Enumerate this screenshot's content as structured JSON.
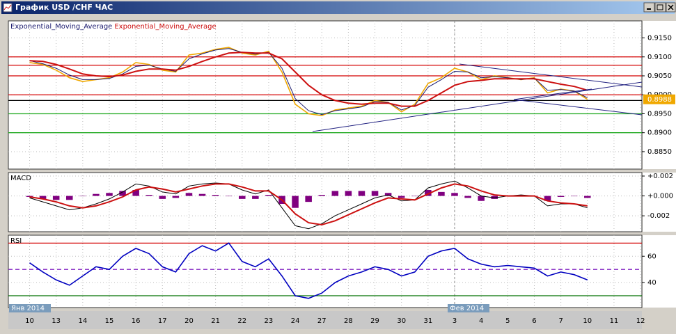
{
  "window": {
    "title": "График USD /CHF  ЧАС"
  },
  "xticks": [
    {
      "value": 0,
      "label": "10"
    },
    {
      "value": 1,
      "label": "13"
    },
    {
      "value": 2,
      "label": "14"
    },
    {
      "value": 3,
      "label": "15"
    },
    {
      "value": 4,
      "label": "16"
    },
    {
      "value": 5,
      "label": "17"
    },
    {
      "value": 6,
      "label": "20"
    },
    {
      "value": 7,
      "label": "21"
    },
    {
      "value": 8,
      "label": "22"
    },
    {
      "value": 9,
      "label": "23"
    },
    {
      "value": 10,
      "label": "24"
    },
    {
      "value": 11,
      "label": "27"
    },
    {
      "value": 12,
      "label": "28"
    },
    {
      "value": 13,
      "label": "29"
    },
    {
      "value": 14,
      "label": "30"
    },
    {
      "value": 15,
      "label": "31"
    },
    {
      "value": 16,
      "label": "3"
    },
    {
      "value": 17,
      "label": "4"
    },
    {
      "value": 18,
      "label": "5"
    },
    {
      "value": 19,
      "label": "6"
    },
    {
      "value": 20,
      "label": "7"
    },
    {
      "value": 21,
      "label": "10"
    },
    {
      "value": 22,
      "label": "11"
    },
    {
      "value": 23,
      "label": "12"
    }
  ],
  "month_labels": [
    "Янв 2014",
    null,
    null,
    null,
    null,
    null,
    null,
    null,
    null,
    null,
    null,
    null,
    null,
    null,
    null,
    null,
    "Фев 2014",
    null,
    null,
    null,
    null,
    null,
    null,
    null
  ],
  "xlim": [
    -0.8,
    23.05
  ],
  "x": [
    0,
    0.5,
    1,
    1.5,
    2,
    2.5,
    3,
    3.5,
    4,
    4.5,
    5,
    5.5,
    6,
    6.5,
    7,
    7.5,
    8,
    8.5,
    9,
    9.5,
    10,
    10.5,
    11,
    11.5,
    12,
    12.5,
    13,
    13.5,
    14,
    14.5,
    15,
    15.5,
    16,
    16.5,
    17,
    17.5,
    18,
    18.5,
    19,
    19.5,
    20,
    20.5,
    21
  ],
  "chart_data": [
    {
      "type": "line",
      "ylim": [
        0.8804,
        0.9195
      ],
      "yticks": [
        {
          "value": 0.915,
          "label": "0.9150"
        },
        {
          "value": 0.91,
          "label": "0.9100"
        },
        {
          "value": 0.905,
          "label": "0.9050"
        },
        {
          "value": 0.9,
          "label": "0.9000"
        },
        {
          "value": 0.895,
          "label": "0.8950"
        },
        {
          "value": 0.89,
          "label": "0.8900"
        },
        {
          "value": 0.885,
          "label": "0.8850"
        }
      ],
      "levels": [
        {
          "value": 0.91,
          "color": "#d40000"
        },
        {
          "value": 0.9078,
          "color": "#d40000"
        },
        {
          "value": 0.905,
          "color": "#d40000"
        },
        {
          "value": 0.9,
          "color": "#d40000"
        },
        {
          "value": 0.8985,
          "color": "#000000"
        },
        {
          "value": 0.895,
          "color": "#22aa22"
        },
        {
          "value": 0.89,
          "color": "#22aa22"
        }
      ],
      "current": {
        "value": 0.8988,
        "label": "0.8988"
      },
      "series": [
        {
          "color": "#f0a800",
          "width": 1.6,
          "values": [
            0.9085,
            0.908,
            0.9065,
            0.9045,
            0.9035,
            0.904,
            0.9045,
            0.906,
            0.9085,
            0.908,
            0.9065,
            0.906,
            0.9105,
            0.911,
            0.912,
            0.9125,
            0.911,
            0.9105,
            0.9115,
            0.906,
            0.8975,
            0.895,
            0.8945,
            0.896,
            0.8965,
            0.897,
            0.8985,
            0.898,
            0.8955,
            0.8975,
            0.903,
            0.9045,
            0.907,
            0.906,
            0.904,
            0.905,
            0.9045,
            0.904,
            0.9045,
            0.9005,
            0.9015,
            0.901,
            0.8988
          ]
        },
        {
          "name": "Exponential_Moving_Average",
          "color": "#1a1a6e",
          "width": 1,
          "values": [
            0.909,
            0.9082,
            0.907,
            0.9052,
            0.904,
            0.904,
            0.9043,
            0.9055,
            0.9075,
            0.9078,
            0.9068,
            0.9062,
            0.9095,
            0.9108,
            0.9118,
            0.9122,
            0.9112,
            0.9107,
            0.9112,
            0.907,
            0.899,
            0.8958,
            0.8948,
            0.8958,
            0.8963,
            0.8968,
            0.8982,
            0.898,
            0.896,
            0.8972,
            0.902,
            0.904,
            0.9062,
            0.906,
            0.9045,
            0.9048,
            0.9045,
            0.904,
            0.9044,
            0.9012,
            0.9014,
            0.901,
            0.8992
          ]
        },
        {
          "name": "Exponential_Moving_Average",
          "color": "#cc1010",
          "width": 2,
          "values": [
            0.909,
            0.9088,
            0.908,
            0.9068,
            0.9055,
            0.905,
            0.9048,
            0.9052,
            0.9062,
            0.9068,
            0.9068,
            0.9065,
            0.9075,
            0.9088,
            0.91,
            0.911,
            0.9112,
            0.911,
            0.911,
            0.9095,
            0.906,
            0.9025,
            0.9,
            0.8985,
            0.8978,
            0.8975,
            0.8978,
            0.8978,
            0.897,
            0.897,
            0.8985,
            0.9005,
            0.9025,
            0.9035,
            0.9038,
            0.9042,
            0.9042,
            0.9042,
            0.9042,
            0.9035,
            0.9028,
            0.9022,
            0.9012
          ]
        }
      ]
    },
    {
      "type": "line",
      "title": "MACD",
      "ylim": [
        -0.0036,
        0.00235
      ],
      "yticks": [
        {
          "value": 0.002,
          "label": "+0.002"
        },
        {
          "value": 0,
          "label": "+0.000"
        },
        {
          "value": -0.002,
          "label": "-0.002"
        }
      ],
      "histogram": {
        "color": "#800080",
        "values": [
          -0.0001,
          -0.0003,
          -0.0004,
          -0.0004,
          0,
          0.0002,
          0.0003,
          0.0005,
          0.0006,
          0.0001,
          -0.0003,
          -0.0002,
          0.0003,
          0.0002,
          0.0001,
          0,
          -0.0003,
          -0.0003,
          0.0001,
          -0.0008,
          -0.0012,
          -0.0006,
          0.0001,
          0.0005,
          0.0005,
          0.0005,
          0.0005,
          0.0003,
          -0.0002,
          0,
          0.0006,
          0.0004,
          0.0003,
          -0.0002,
          -0.0005,
          -0.0003,
          0,
          0.0001,
          0,
          -0.0005,
          -0.0001,
          0,
          -0.0002
        ]
      },
      "series": [
        {
          "color": "#000000",
          "width": 1,
          "values": [
            -0.0002,
            -0.0006,
            -0.001,
            -0.0014,
            -0.0012,
            -0.0008,
            -0.0003,
            0.0004,
            0.0012,
            0.001,
            0.0004,
            0.0002,
            0.001,
            0.0012,
            0.0013,
            0.0012,
            0.0006,
            0.0002,
            0.0006,
            -0.0012,
            -0.003,
            -0.0033,
            -0.0028,
            -0.002,
            -0.0014,
            -0.0008,
            -0.0002,
            0.0001,
            -0.0005,
            -0.0004,
            0.0008,
            0.0012,
            0.0015,
            0.0008,
            0,
            -0.0002,
            0,
            0.0001,
            0,
            -0.001,
            -0.0008,
            -0.0008,
            -0.0012
          ]
        },
        {
          "color": "#cc1010",
          "width": 2,
          "values": [
            -0.0001,
            -0.0003,
            -0.0006,
            -0.001,
            -0.0012,
            -0.001,
            -0.0006,
            -0.0001,
            0.0006,
            0.0009,
            0.0007,
            0.0004,
            0.0007,
            0.001,
            0.0012,
            0.0012,
            0.0009,
            0.0005,
            0.0005,
            -0.0004,
            -0.0018,
            -0.0027,
            -0.0029,
            -0.0025,
            -0.0019,
            -0.0013,
            -0.0007,
            -0.0002,
            -0.0003,
            -0.0004,
            0.0002,
            0.0008,
            0.0012,
            0.001,
            0.0005,
            0.0001,
            0,
            0,
            0,
            -0.0005,
            -0.0007,
            -0.0008,
            -0.001
          ]
        }
      ]
    },
    {
      "type": "line",
      "title": "RSI",
      "ylim": [
        21,
        76
      ],
      "yticks": [
        60,
        40
      ],
      "levels": [
        {
          "value": 70,
          "color": "#d40000"
        },
        {
          "value": 50,
          "color": "#8020c0",
          "dashed": true
        },
        {
          "value": 30,
          "color": "#007000"
        }
      ],
      "series": [
        {
          "color": "#0000c0",
          "width": 1.6,
          "values": [
            55,
            48,
            42,
            38,
            45,
            52,
            50,
            60,
            66,
            62,
            52,
            48,
            62,
            68,
            64,
            70,
            56,
            52,
            58,
            45,
            30,
            28,
            32,
            40,
            45,
            48,
            52,
            50,
            45,
            48,
            60,
            64,
            66,
            58,
            54,
            52,
            53,
            52,
            51,
            45,
            48,
            46,
            42
          ]
        }
      ]
    }
  ]
}
